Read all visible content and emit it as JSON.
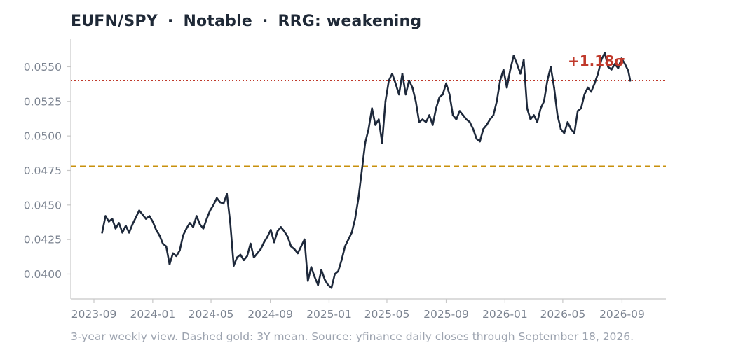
{
  "header": {
    "pair": "EUFN/SPY",
    "rating": "Notable",
    "rrg": "RRG: weakening",
    "separator": "·"
  },
  "footnote": "3-year weekly view. Dashed gold: 3Y mean. Source: yfinance daily closes through September 18, 2026.",
  "colors": {
    "line": "#1e293b",
    "mean": "#c8900c",
    "sigma": "#c0392b",
    "axis": "#c8c8c8",
    "tick_text": "#7b8390"
  },
  "chart_data": {
    "type": "line",
    "title": "EUFN/SPY · Notable · RRG: weakening",
    "xlabel": "",
    "ylabel": "",
    "x_range": [
      "2023-07-15",
      "2026-12-01"
    ],
    "ylim": [
      0.0382,
      0.057
    ],
    "x_ticks": [
      "2023-09",
      "2024-01",
      "2024-05",
      "2024-09",
      "2025-01",
      "2025-05",
      "2025-09",
      "2026-01",
      "2026-05",
      "2026-09"
    ],
    "y_ticks": [
      "0.0400",
      "0.0425",
      "0.0450",
      "0.0475",
      "0.0500",
      "0.0525",
      "0.0550"
    ],
    "mean_line": {
      "value": 0.0478,
      "style": "dashed",
      "color": "#c8900c"
    },
    "sigma_line": {
      "value": 0.054,
      "style": "dotted",
      "color": "#c0392b",
      "label": "+1.18σ"
    },
    "grid": false,
    "series": [
      {
        "color": "#1e293b",
        "points": [
          [
            "2023-09-18",
            0.043
          ],
          [
            "2023-09-25",
            0.0442
          ],
          [
            "2023-10-02",
            0.0438
          ],
          [
            "2023-10-09",
            0.044
          ],
          [
            "2023-10-16",
            0.0433
          ],
          [
            "2023-10-23",
            0.0437
          ],
          [
            "2023-10-30",
            0.043
          ],
          [
            "2023-11-06",
            0.0435
          ],
          [
            "2023-11-13",
            0.043
          ],
          [
            "2023-11-20",
            0.0436
          ],
          [
            "2023-11-27",
            0.0441
          ],
          [
            "2023-12-04",
            0.0446
          ],
          [
            "2023-12-11",
            0.0443
          ],
          [
            "2023-12-18",
            0.044
          ],
          [
            "2023-12-25",
            0.0442
          ],
          [
            "2024-01-01",
            0.0438
          ],
          [
            "2024-01-08",
            0.0432
          ],
          [
            "2024-01-15",
            0.0428
          ],
          [
            "2024-01-22",
            0.0422
          ],
          [
            "2024-01-29",
            0.042
          ],
          [
            "2024-02-05",
            0.0407
          ],
          [
            "2024-02-12",
            0.0415
          ],
          [
            "2024-02-19",
            0.0413
          ],
          [
            "2024-02-26",
            0.0417
          ],
          [
            "2024-03-04",
            0.0428
          ],
          [
            "2024-03-11",
            0.0433
          ],
          [
            "2024-03-18",
            0.0437
          ],
          [
            "2024-03-25",
            0.0434
          ],
          [
            "2024-04-01",
            0.0442
          ],
          [
            "2024-04-08",
            0.0436
          ],
          [
            "2024-04-15",
            0.0433
          ],
          [
            "2024-04-22",
            0.044
          ],
          [
            "2024-04-29",
            0.0446
          ],
          [
            "2024-05-06",
            0.045
          ],
          [
            "2024-05-13",
            0.0455
          ],
          [
            "2024-05-20",
            0.0452
          ],
          [
            "2024-05-27",
            0.0451
          ],
          [
            "2024-06-03",
            0.0458
          ],
          [
            "2024-06-10",
            0.0437
          ],
          [
            "2024-06-17",
            0.0406
          ],
          [
            "2024-06-24",
            0.0412
          ],
          [
            "2024-07-01",
            0.0414
          ],
          [
            "2024-07-08",
            0.041
          ],
          [
            "2024-07-15",
            0.0413
          ],
          [
            "2024-07-22",
            0.0422
          ],
          [
            "2024-07-29",
            0.0412
          ],
          [
            "2024-08-05",
            0.0415
          ],
          [
            "2024-08-12",
            0.0418
          ],
          [
            "2024-08-19",
            0.0423
          ],
          [
            "2024-08-26",
            0.0427
          ],
          [
            "2024-09-02",
            0.0432
          ],
          [
            "2024-09-09",
            0.0423
          ],
          [
            "2024-09-16",
            0.0431
          ],
          [
            "2024-09-23",
            0.0434
          ],
          [
            "2024-09-30",
            0.0431
          ],
          [
            "2024-10-07",
            0.0427
          ],
          [
            "2024-10-14",
            0.042
          ],
          [
            "2024-10-21",
            0.0418
          ],
          [
            "2024-10-28",
            0.0415
          ],
          [
            "2024-11-04",
            0.042
          ],
          [
            "2024-11-11",
            0.0425
          ],
          [
            "2024-11-18",
            0.0395
          ],
          [
            "2024-11-25",
            0.0405
          ],
          [
            "2024-12-02",
            0.0398
          ],
          [
            "2024-12-09",
            0.0392
          ],
          [
            "2024-12-16",
            0.0403
          ],
          [
            "2024-12-23",
            0.0396
          ],
          [
            "2024-12-30",
            0.0392
          ],
          [
            "2025-01-06",
            0.039
          ],
          [
            "2025-01-13",
            0.04
          ],
          [
            "2025-01-20",
            0.0402
          ],
          [
            "2025-01-27",
            0.041
          ],
          [
            "2025-02-03",
            0.042
          ],
          [
            "2025-02-10",
            0.0425
          ],
          [
            "2025-02-17",
            0.043
          ],
          [
            "2025-02-24",
            0.044
          ],
          [
            "2025-03-03",
            0.0455
          ],
          [
            "2025-03-10",
            0.0475
          ],
          [
            "2025-03-17",
            0.0495
          ],
          [
            "2025-03-24",
            0.0505
          ],
          [
            "2025-03-31",
            0.052
          ],
          [
            "2025-04-07",
            0.0508
          ],
          [
            "2025-04-14",
            0.0512
          ],
          [
            "2025-04-21",
            0.0495
          ],
          [
            "2025-04-28",
            0.0525
          ],
          [
            "2025-05-05",
            0.054
          ],
          [
            "2025-05-12",
            0.0545
          ],
          [
            "2025-05-19",
            0.0538
          ],
          [
            "2025-05-26",
            0.053
          ],
          [
            "2025-06-02",
            0.0545
          ],
          [
            "2025-06-09",
            0.053
          ],
          [
            "2025-06-16",
            0.054
          ],
          [
            "2025-06-23",
            0.0535
          ],
          [
            "2025-06-30",
            0.0525
          ],
          [
            "2025-07-07",
            0.051
          ],
          [
            "2025-07-14",
            0.0512
          ],
          [
            "2025-07-21",
            0.051
          ],
          [
            "2025-07-28",
            0.0515
          ],
          [
            "2025-08-04",
            0.0508
          ],
          [
            "2025-08-11",
            0.052
          ],
          [
            "2025-08-18",
            0.0528
          ],
          [
            "2025-08-25",
            0.053
          ],
          [
            "2025-09-01",
            0.0538
          ],
          [
            "2025-09-08",
            0.053
          ],
          [
            "2025-09-15",
            0.0515
          ],
          [
            "2025-09-22",
            0.0512
          ],
          [
            "2025-09-29",
            0.0518
          ],
          [
            "2025-10-06",
            0.0515
          ],
          [
            "2025-10-13",
            0.0512
          ],
          [
            "2025-10-20",
            0.051
          ],
          [
            "2025-10-27",
            0.0505
          ],
          [
            "2025-11-03",
            0.0498
          ],
          [
            "2025-11-10",
            0.0496
          ],
          [
            "2025-11-17",
            0.0505
          ],
          [
            "2025-11-24",
            0.0508
          ],
          [
            "2025-12-01",
            0.0512
          ],
          [
            "2025-12-08",
            0.0515
          ],
          [
            "2025-12-15",
            0.0525
          ],
          [
            "2025-12-22",
            0.054
          ],
          [
            "2025-12-29",
            0.0548
          ],
          [
            "2026-01-05",
            0.0535
          ],
          [
            "2026-01-12",
            0.0548
          ],
          [
            "2026-01-19",
            0.0558
          ],
          [
            "2026-01-26",
            0.0552
          ],
          [
            "2026-02-02",
            0.0545
          ],
          [
            "2026-02-09",
            0.0555
          ],
          [
            "2026-02-16",
            0.052
          ],
          [
            "2026-02-23",
            0.0512
          ],
          [
            "2026-03-02",
            0.0515
          ],
          [
            "2026-03-09",
            0.051
          ],
          [
            "2026-03-16",
            0.052
          ],
          [
            "2026-03-23",
            0.0525
          ],
          [
            "2026-03-30",
            0.054
          ],
          [
            "2026-04-06",
            0.055
          ],
          [
            "2026-04-13",
            0.0535
          ],
          [
            "2026-04-20",
            0.0515
          ],
          [
            "2026-04-27",
            0.0505
          ],
          [
            "2026-05-04",
            0.0502
          ],
          [
            "2026-05-11",
            0.051
          ],
          [
            "2026-05-18",
            0.0505
          ],
          [
            "2026-05-25",
            0.0502
          ],
          [
            "2026-06-01",
            0.0518
          ],
          [
            "2026-06-08",
            0.052
          ],
          [
            "2026-06-15",
            0.053
          ],
          [
            "2026-06-22",
            0.0535
          ],
          [
            "2026-06-29",
            0.0532
          ],
          [
            "2026-07-06",
            0.0538
          ],
          [
            "2026-07-13",
            0.0545
          ],
          [
            "2026-07-20",
            0.0555
          ],
          [
            "2026-07-27",
            0.056
          ],
          [
            "2026-08-03",
            0.055
          ],
          [
            "2026-08-10",
            0.0548
          ],
          [
            "2026-08-17",
            0.0552
          ],
          [
            "2026-08-24",
            0.0549
          ],
          [
            "2026-08-31",
            0.0556
          ],
          [
            "2026-09-07",
            0.0552
          ],
          [
            "2026-09-14",
            0.0547
          ],
          [
            "2026-09-18",
            0.054
          ]
        ]
      }
    ]
  }
}
